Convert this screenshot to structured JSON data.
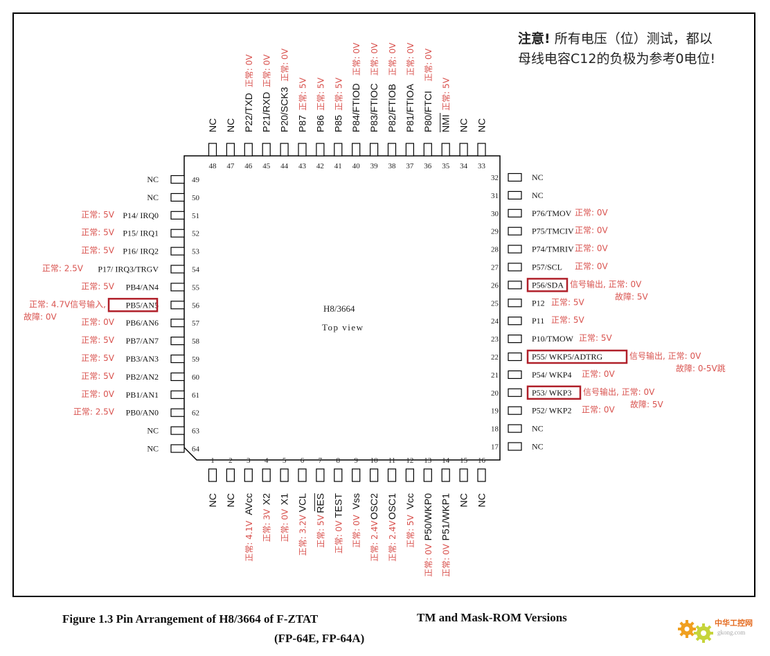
{
  "note": {
    "heading": "注意!",
    "line1": "所有电压（位）测试，都以",
    "line2": "母线电容C12的负极为参考0电位!"
  },
  "chip": {
    "name": "H8/3664",
    "view": "Top view"
  },
  "caption": {
    "part1": "Figure 1.3 Pin Arrangement of H8/3664 of F-ZTAT",
    "part2": "TM and Mask-ROM Versions",
    "part3": "(FP-64E, FP-64A)"
  },
  "logo": {
    "text": "中华工控网",
    "site": "gkong.com"
  },
  "colors": {
    "annotation": "#d9534f",
    "highlight_box": "#b0202a",
    "pin": "#000000"
  },
  "left_pins": [
    {
      "num": "49",
      "name": "NC",
      "ann": ""
    },
    {
      "num": "50",
      "name": "NC",
      "ann": ""
    },
    {
      "num": "51",
      "name": "P14/ IRQ0",
      "ann": "正常: 5V"
    },
    {
      "num": "52",
      "name": "P15/ IRQ1",
      "ann": "正常: 5V"
    },
    {
      "num": "53",
      "name": "P16/ IRQ2",
      "ann": "正常: 5V"
    },
    {
      "num": "54",
      "name": "P17/ IRQ3/TRGV",
      "ann": "正常: 2.5V"
    },
    {
      "num": "55",
      "name": "PB4/AN4",
      "ann": "正常: 5V"
    },
    {
      "num": "56",
      "name": "PB5/AN5",
      "ann": "正常: 4.7V信号输入,",
      "ann2": "故障: 0V",
      "box": true
    },
    {
      "num": "57",
      "name": "PB6/AN6",
      "ann": "正常: 0V"
    },
    {
      "num": "58",
      "name": "PB7/AN7",
      "ann": "正常: 5V"
    },
    {
      "num": "59",
      "name": "PB3/AN3",
      "ann": "正常: 5V"
    },
    {
      "num": "60",
      "name": "PB2/AN2",
      "ann": "正常: 5V"
    },
    {
      "num": "61",
      "name": "PB1/AN1",
      "ann": "正常: 0V"
    },
    {
      "num": "62",
      "name": "PB0/AN0",
      "ann": "正常: 2.5V"
    },
    {
      "num": "63",
      "name": "NC",
      "ann": ""
    },
    {
      "num": "64",
      "name": "NC",
      "ann": ""
    }
  ],
  "right_pins": [
    {
      "num": "32",
      "name": "NC",
      "ann": ""
    },
    {
      "num": "31",
      "name": "NC",
      "ann": ""
    },
    {
      "num": "30",
      "name": "P76/TMOV",
      "ann": "正常: 0V"
    },
    {
      "num": "29",
      "name": "P75/TMCIV",
      "ann": "正常: 0V"
    },
    {
      "num": "28",
      "name": "P74/TMRIV",
      "ann": "正常: 0V"
    },
    {
      "num": "27",
      "name": "P57/SCL",
      "ann": "正常: 0V"
    },
    {
      "num": "26",
      "name": "P56/SDA",
      "ann": "信号输出,  正常: 0V",
      "ann2": "故障: 5V",
      "box": true
    },
    {
      "num": "25",
      "name": "P12",
      "ann": "正常: 5V"
    },
    {
      "num": "24",
      "name": "P11",
      "ann": "正常: 5V"
    },
    {
      "num": "23",
      "name": "P10/TMOW",
      "ann": "正常: 5V"
    },
    {
      "num": "22",
      "name": "P55/ WKP5/ADTRG",
      "ann": "信号输出,  正常: 0V",
      "ann2": "故障: 0-5V跳",
      "box": true
    },
    {
      "num": "21",
      "name": "P54/  WKP4",
      "ann": "正常: 0V"
    },
    {
      "num": "20",
      "name": "P53/   WKP3",
      "ann": "信号输出,  正常: 0V",
      "ann2": "故障: 5V",
      "box": true
    },
    {
      "num": "19",
      "name": "P52/   WKP2",
      "ann": "正常: 0V"
    },
    {
      "num": "18",
      "name": "NC",
      "ann": ""
    },
    {
      "num": "17",
      "name": "NC",
      "ann": ""
    }
  ],
  "top_pins": [
    {
      "num": "48",
      "name": "NC",
      "ann": ""
    },
    {
      "num": "47",
      "name": "NC",
      "ann": ""
    },
    {
      "num": "46",
      "name": "P22/TXD",
      "ann": "正常: 0V"
    },
    {
      "num": "45",
      "name": "P21/RXD",
      "ann": "正常: 0V"
    },
    {
      "num": "44",
      "name": "P20/SCK3",
      "ann": "正常: 0V"
    },
    {
      "num": "43",
      "name": "P87",
      "ann": "正常: 5V"
    },
    {
      "num": "42",
      "name": "P86",
      "ann": "正常: 5V"
    },
    {
      "num": "41",
      "name": "P85",
      "ann": "正常: 5V"
    },
    {
      "num": "40",
      "name": "P84/FTIOD",
      "ann": "正常: 0V"
    },
    {
      "num": "39",
      "name": "P83/FTIOC",
      "ann": "正常: 0V"
    },
    {
      "num": "38",
      "name": "P82/FTIOB",
      "ann": "正常: 0V"
    },
    {
      "num": "37",
      "name": "P81/FTIOA",
      "ann": "正常: 0V"
    },
    {
      "num": "36",
      "name": "P80/FTCI",
      "ann": "正常: 0V"
    },
    {
      "num": "35",
      "name": "NMI",
      "ann": "正常: 5V"
    },
    {
      "num": "34",
      "name": "NC",
      "ann": ""
    },
    {
      "num": "33",
      "name": "NC",
      "ann": ""
    }
  ],
  "bottom_pins": [
    {
      "num": "1",
      "name": "NC",
      "ann": ""
    },
    {
      "num": "2",
      "name": "NC",
      "ann": ""
    },
    {
      "num": "3",
      "name": "AVcc",
      "ann": "正常: 4.1V"
    },
    {
      "num": "4",
      "name": "X2",
      "ann": "正常: 3V"
    },
    {
      "num": "5",
      "name": "X1",
      "ann": "正常: 0V"
    },
    {
      "num": "6",
      "name": "VCL",
      "ann": "正常: 3.2V"
    },
    {
      "num": "7",
      "name": "RES",
      "ann": "正常: 5V"
    },
    {
      "num": "8",
      "name": "TEST",
      "ann": "正常: 0V"
    },
    {
      "num": "9",
      "name": "Vss",
      "ann": "正常: 0V"
    },
    {
      "num": "10",
      "name": "OSC2",
      "ann": "正常: 2.4V"
    },
    {
      "num": "11",
      "name": "OSC1",
      "ann": "正常: 2.4V"
    },
    {
      "num": "12",
      "name": "Vcc",
      "ann": "正常: 5V"
    },
    {
      "num": "13",
      "name": "P50/WKP0",
      "ann": "正常: 0V"
    },
    {
      "num": "14",
      "name": "P51/WKP1",
      "ann": "正常: 0V"
    },
    {
      "num": "15",
      "name": "NC",
      "ann": ""
    },
    {
      "num": "16",
      "name": "NC",
      "ann": ""
    }
  ]
}
